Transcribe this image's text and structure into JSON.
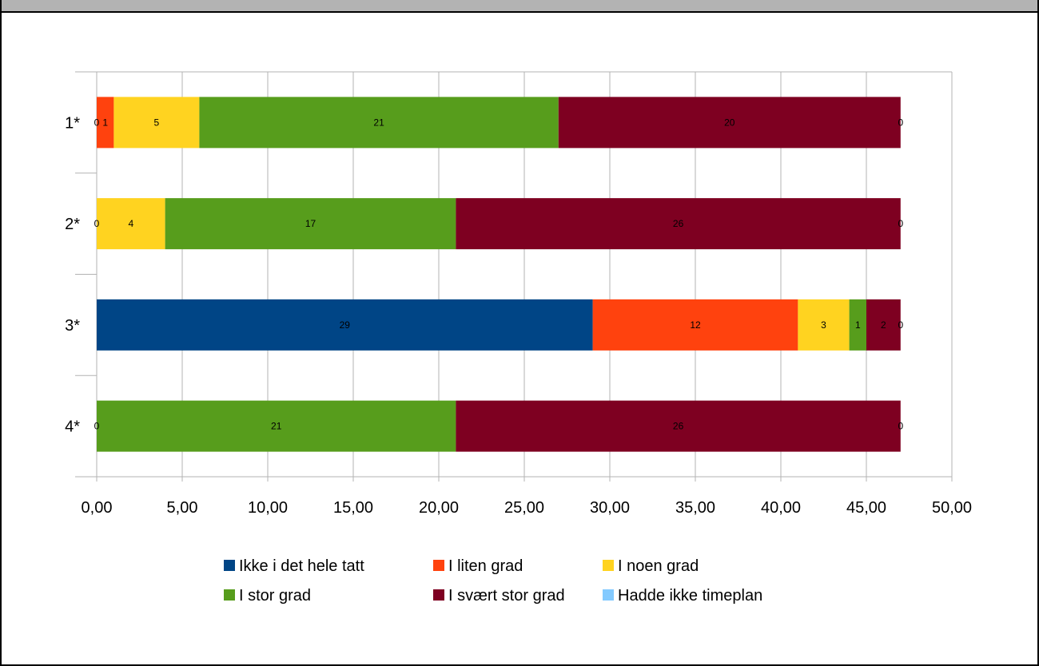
{
  "window": {
    "title": ""
  },
  "chart_data": {
    "type": "bar",
    "orientation": "horizontal",
    "stacked": true,
    "categories": [
      "1*",
      "2*",
      "3*",
      "4*"
    ],
    "series": [
      {
        "name": "Ikke i det hele tatt",
        "color": "#004586",
        "values": [
          0,
          0,
          29,
          0
        ]
      },
      {
        "name": "I liten grad",
        "color": "#ff420e",
        "values": [
          1,
          0,
          12,
          0
        ]
      },
      {
        "name": "I noen grad",
        "color": "#ffd320",
        "values": [
          5,
          4,
          3,
          0
        ]
      },
      {
        "name": "I stor grad",
        "color": "#579d1c",
        "values": [
          21,
          17,
          1,
          21
        ]
      },
      {
        "name": "I svært stor grad",
        "color": "#7e0021",
        "values": [
          20,
          26,
          2,
          26
        ]
      },
      {
        "name": "Hadde ikke timeplan",
        "color": "#83caff",
        "values": [
          0,
          0,
          0,
          0
        ]
      }
    ],
    "data_labels": [
      [
        "0",
        "1",
        "5",
        "21",
        "20",
        "0"
      ],
      [
        "0",
        "4",
        "17",
        "26",
        "0"
      ],
      [
        "29",
        "12",
        "3",
        "1",
        "2",
        "0"
      ],
      [
        "0",
        "21",
        "26",
        "0"
      ]
    ],
    "xlim": [
      0,
      50
    ],
    "xticks": [
      0,
      5,
      10,
      15,
      20,
      25,
      30,
      35,
      40,
      45,
      50
    ],
    "xtick_labels": [
      "0,00",
      "5,00",
      "10,00",
      "15,00",
      "20,00",
      "25,00",
      "30,00",
      "35,00",
      "40,00",
      "45,00",
      "50,00"
    ],
    "grid": true,
    "legend_position": "bottom",
    "title": "",
    "xlabel": "",
    "ylabel": ""
  }
}
